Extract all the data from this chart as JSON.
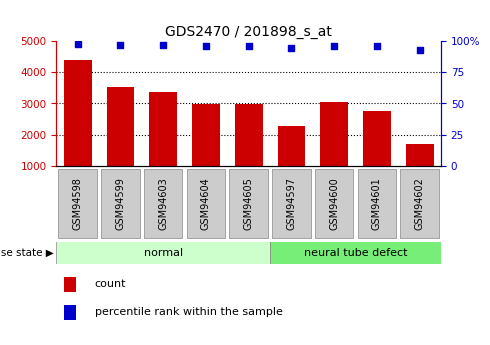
{
  "title": "GDS2470 / 201898_s_at",
  "categories": [
    "GSM94598",
    "GSM94599",
    "GSM94603",
    "GSM94604",
    "GSM94605",
    "GSM94597",
    "GSM94600",
    "GSM94601",
    "GSM94602"
  ],
  "bar_values": [
    4400,
    3520,
    3360,
    2970,
    2970,
    2280,
    3060,
    2750,
    1700
  ],
  "percentile_values": [
    98,
    97,
    97,
    96,
    96,
    95,
    96,
    96,
    93
  ],
  "bar_color": "#cc0000",
  "dot_color": "#0000cc",
  "ylim_left": [
    1000,
    5000
  ],
  "yticks_left": [
    1000,
    2000,
    3000,
    4000,
    5000
  ],
  "ylim_right": [
    0,
    100
  ],
  "yticks_right": [
    0,
    25,
    50,
    75,
    100
  ],
  "yticklabels_right": [
    "0",
    "25",
    "50",
    "75",
    "100%"
  ],
  "left_axis_color": "#cc0000",
  "right_axis_color": "#0000cc",
  "normal_indices": [
    0,
    1,
    2,
    3,
    4
  ],
  "defect_indices": [
    5,
    6,
    7,
    8
  ],
  "normal_label": "normal",
  "defect_label": "neural tube defect",
  "normal_color": "#ccffcc",
  "defect_color": "#77ee77",
  "disease_state_label": "disease state",
  "legend_count_label": "count",
  "legend_percentile_label": "percentile rank within the sample",
  "tick_box_color": "#cccccc",
  "bar_bottom": 1000,
  "figsize": [
    4.9,
    3.45
  ],
  "dpi": 100
}
